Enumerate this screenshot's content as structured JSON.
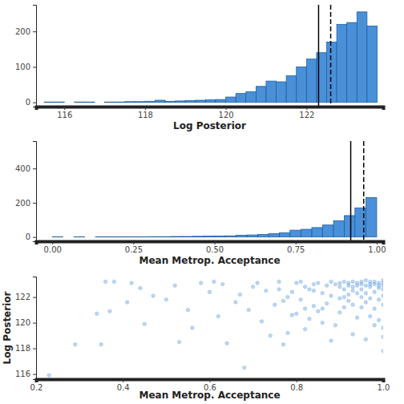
{
  "chart_data": [
    {
      "type": "histogram",
      "xlabel": "Log Posterior",
      "bins": [
        115.5,
        115.75,
        116,
        116.25,
        116.5,
        116.75,
        117,
        117.25,
        117.5,
        117.75,
        118,
        118.25,
        118.5,
        118.75,
        119,
        119.25,
        119.5,
        119.75,
        120,
        120.25,
        120.5,
        120.75,
        121,
        121.25,
        121.5,
        121.75,
        122,
        122.25,
        122.5,
        122.75,
        123,
        123.25,
        123.5,
        123.75
      ],
      "counts": [
        1,
        1,
        0,
        1,
        1,
        0,
        1,
        1,
        2,
        2,
        3,
        6,
        3,
        4,
        5,
        6,
        7,
        8,
        15,
        25,
        30,
        45,
        60,
        58,
        75,
        100,
        122,
        140,
        170,
        220,
        225,
        255,
        215
      ],
      "color": "#4a90d9",
      "vlines": [
        {
          "value": 122.3,
          "line_style": "solid"
        },
        {
          "value": 122.6,
          "line_style": "dashed"
        }
      ],
      "xlim": [
        115.3,
        123.9
      ],
      "xticks": [
        116,
        118,
        120,
        122
      ],
      "ylim": [
        -12,
        275
      ],
      "yticks": [
        0,
        100,
        200
      ]
    },
    {
      "type": "histogram",
      "xlabel": "Mean Metrop. Acceptance",
      "bins": [
        0,
        0.033,
        0.067,
        0.1,
        0.133,
        0.167,
        0.2,
        0.233,
        0.267,
        0.3,
        0.333,
        0.367,
        0.4,
        0.433,
        0.467,
        0.5,
        0.533,
        0.567,
        0.6,
        0.633,
        0.667,
        0.7,
        0.733,
        0.767,
        0.8,
        0.833,
        0.867,
        0.9,
        0.933,
        0.967,
        1
      ],
      "counts": [
        1,
        0,
        1,
        0,
        1,
        1,
        1,
        1,
        1,
        2,
        2,
        3,
        3,
        4,
        5,
        6,
        7,
        10,
        12,
        15,
        20,
        25,
        40,
        45,
        55,
        70,
        95,
        125,
        170,
        230
      ],
      "color": "#4a90d9",
      "vlines": [
        {
          "value": 0.92,
          "line_style": "solid"
        },
        {
          "value": 0.96,
          "line_style": "dashed"
        }
      ],
      "xlim": [
        -0.05,
        1.02
      ],
      "xticks": [
        {
          "value": 0,
          "label": "0.00"
        },
        {
          "value": 0.25,
          "label": "0.25"
        },
        {
          "value": 0.5,
          "label": "0.50"
        },
        {
          "value": 0.75,
          "label": "0.75"
        },
        {
          "value": 1,
          "label": "1.00"
        }
      ],
      "ylim": [
        -25,
        560
      ],
      "yticks": [
        0,
        200,
        400
      ]
    },
    {
      "type": "scatter",
      "xlabel": "Mean Metrop. Acceptance",
      "ylabel": "Log Posterior",
      "color": "#4a90d9",
      "marker": "circle",
      "x": [
        0.23,
        0.29,
        0.35,
        0.36,
        0.38,
        0.34,
        0.37,
        0.42,
        0.44,
        0.41,
        0.47,
        0.45,
        0.5,
        0.52,
        0.55,
        0.56,
        0.53,
        0.58,
        0.6,
        0.62,
        0.64,
        0.66,
        0.68,
        0.7,
        0.72,
        0.74,
        0.61,
        0.63,
        0.67,
        0.69,
        0.71,
        0.73,
        0.75,
        0.76,
        0.77,
        0.78,
        0.79,
        0.8,
        0.81,
        0.82,
        0.83,
        0.84,
        0.85,
        0.86,
        0.87,
        0.88,
        0.89,
        0.9,
        0.91,
        0.92,
        0.93,
        0.94,
        0.95,
        0.96,
        0.97,
        0.98,
        0.99,
        1.0,
        1.0,
        1.0,
        1.0,
        0.99,
        0.98,
        0.97,
        0.96,
        0.95,
        0.94,
        0.93,
        0.92,
        0.91,
        0.9,
        0.89,
        0.88,
        0.87,
        0.86,
        0.85,
        0.84,
        0.83,
        0.82,
        0.81,
        0.8,
        0.79,
        0.78,
        0.77,
        0.76,
        0.99,
        0.98,
        0.97,
        0.96,
        0.95,
        0.94,
        0.93,
        0.92,
        0.91,
        0.9,
        1.0,
        1.0,
        1.0,
        0.99,
        0.98,
        0.97,
        0.96,
        0.95,
        0.93,
        0.88,
        0.86,
        0.84,
        0.82,
        0.99,
        0.98,
        0.97,
        0.96,
        0.95,
        0.94,
        0.93,
        0.92,
        0.91,
        0.9,
        1.0,
        1.0
      ],
      "values": [
        115.9,
        118.3,
        118.3,
        123.2,
        123.2,
        120.7,
        120.9,
        123.1,
        122.7,
        121.6,
        122.1,
        119.9,
        121.8,
        122.9,
        121.0,
        119.6,
        118.5,
        123.1,
        122.4,
        120.5,
        118.4,
        121.6,
        116.5,
        122.8,
        120.1,
        119.0,
        123.2,
        123.0,
        122.2,
        121.0,
        123.1,
        122.5,
        121.4,
        123.2,
        118.3,
        122.0,
        120.6,
        123.1,
        121.8,
        119.5,
        122.6,
        123.0,
        120.9,
        122.3,
        121.5,
        123.2,
        119.8,
        122.8,
        121.2,
        123.1,
        122.5,
        120.4,
        123.2,
        122.9,
        121.9,
        123.2,
        122.7,
        123.3,
        117.8,
        118.9,
        119.6,
        120.2,
        121.1,
        123.0,
        121.6,
        122.0,
        122.9,
        123.2,
        121.7,
        122.6,
        120.8,
        123.0,
        122.1,
        122.9,
        120.0,
        123.1,
        121.3,
        120.3,
        122.8,
        123.2,
        120.7,
        122.4,
        119.2,
        121.7,
        122.6,
        123.1,
        122.4,
        122.8,
        123.3,
        122.6,
        123.1,
        121.4,
        122.2,
        123.2,
        121.9,
        122.9,
        122.1,
        121.4,
        121.8,
        119.8,
        120.5,
        118.7,
        121.2,
        119.1,
        118.6,
        121.1,
        122.5,
        121.1,
        122.9,
        123.0,
        123.2,
        122.3,
        123.0,
        122.3,
        122.8,
        122.9,
        122.0,
        123.1,
        123.1,
        122.6
      ],
      "xlim": [
        0.2,
        1.0
      ],
      "xticks": [
        0.2,
        0.4,
        0.6,
        0.8,
        {
          "value": 1,
          "label": "1.0"
        }
      ],
      "ylim": [
        115.6,
        123.6
      ],
      "yticks": [
        116,
        118,
        120,
        122
      ]
    }
  ]
}
